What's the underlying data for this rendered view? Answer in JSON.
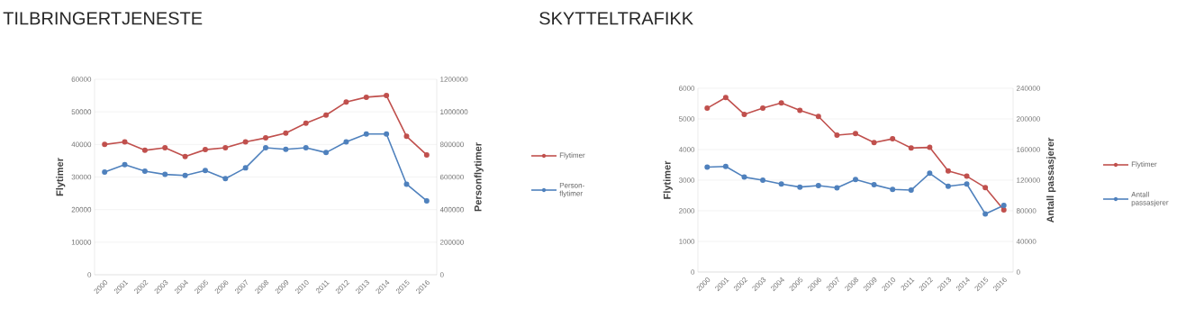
{
  "chart_data": [
    {
      "type": "line",
      "title": "TILBRINGERTJENESTE",
      "ylabel": "Flytimer",
      "y2label": "Personflytimer",
      "categories": [
        "2000",
        "2001",
        "2002",
        "2003",
        "2004",
        "2005",
        "2006",
        "2007",
        "2008",
        "2009",
        "2010",
        "2011",
        "2012",
        "2013",
        "2014",
        "2015",
        "2016"
      ],
      "series": [
        {
          "name": "Flytimer",
          "color": "#c0504d",
          "values": [
            40000,
            40800,
            38200,
            39000,
            36300,
            38400,
            39000,
            40800,
            42000,
            43500,
            46500,
            49000,
            53000,
            54500,
            55000,
            42500,
            36800
          ]
        },
        {
          "name": "Person-flytimer",
          "color": "#4f81bd",
          "axis": "y2",
          "values": [
            630000,
            676000,
            636000,
            616000,
            610000,
            640000,
            590000,
            656000,
            780000,
            770000,
            780000,
            750000,
            816000,
            864000,
            864000,
            556000,
            454000
          ]
        }
      ],
      "ylim": [
        0,
        60000
      ],
      "yticks": [
        0,
        10000,
        20000,
        30000,
        40000,
        50000,
        60000
      ],
      "y2lim": [
        0,
        1200000
      ],
      "y2ticks": [
        0,
        200000,
        400000,
        600000,
        800000,
        1000000,
        1200000
      ],
      "grid": "y",
      "legend": "right",
      "marker": "circle"
    },
    {
      "type": "line",
      "title": "SKYTTELTRAFIKK",
      "ylabel": "Flytimer",
      "y2label": "Antall passasjerer",
      "categories": [
        "2000",
        "2001",
        "2002",
        "2003",
        "2004",
        "2005",
        "2006",
        "2007",
        "2008",
        "2009",
        "2010",
        "2011",
        "2012",
        "2013",
        "2014",
        "2015",
        "2016"
      ],
      "series": [
        {
          "name": "Flytimer",
          "color": "#c0504d",
          "values": [
            5350,
            5700,
            5150,
            5350,
            5520,
            5280,
            5080,
            4470,
            4520,
            4230,
            4350,
            4050,
            4070,
            3300,
            3130,
            2760,
            2030
          ]
        },
        {
          "name": "Antall passasjerer",
          "color": "#4f81bd",
          "axis": "y2",
          "values": [
            137000,
            138000,
            124000,
            120000,
            115000,
            111000,
            113000,
            110000,
            121000,
            114000,
            108000,
            107000,
            129000,
            112000,
            115000,
            76000,
            87000
          ]
        }
      ],
      "ylim": [
        0,
        6000
      ],
      "yticks": [
        0,
        1000,
        2000,
        3000,
        4000,
        5000,
        6000
      ],
      "y2lim": [
        0,
        240000
      ],
      "y2ticks": [
        0,
        40000,
        80000,
        120000,
        160000,
        200000,
        240000
      ],
      "grid": "y",
      "legend": "right",
      "marker": "circle"
    }
  ]
}
